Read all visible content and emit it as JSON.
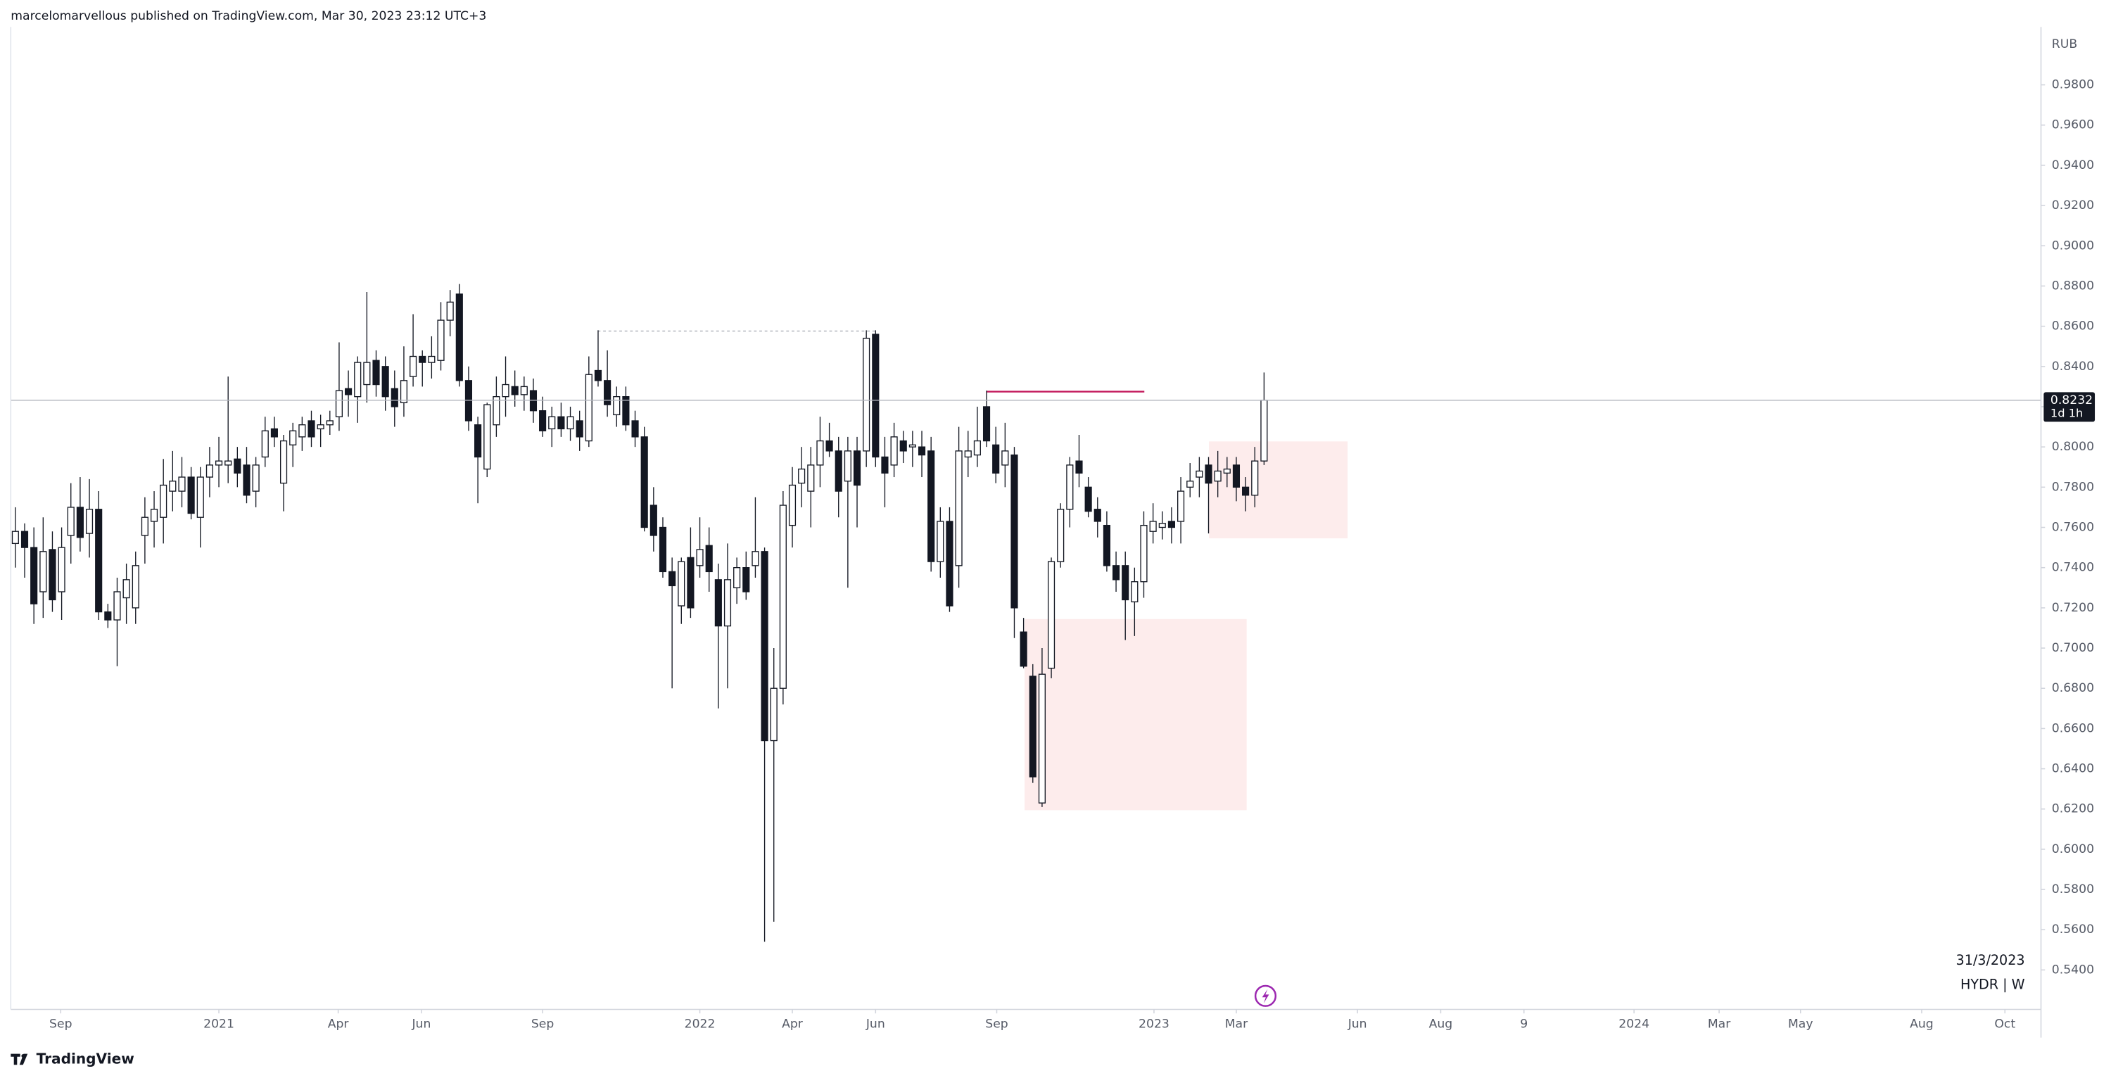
{
  "header": "marcelomarvellous published on TradingView.com, Mar 30, 2023 23:12 UTC+3",
  "footer": "TradingView",
  "chart_data": {
    "type": "candlestick",
    "currency": "RUB",
    "date_label": "31/3/2023",
    "symbol_label": "HYDR | W",
    "countdown": "1d 1h",
    "up_color": "#ffffff",
    "down_color": "#131722",
    "outline_color": "#131722",
    "xlim": [
      -0.5,
      219
    ],
    "ylim": [
      0.5204,
      1.0088
    ],
    "xticks": [
      {
        "value": 4.9,
        "label": "Sep"
      },
      {
        "value": 22,
        "label": "2021"
      },
      {
        "value": 34.9,
        "label": "Apr"
      },
      {
        "value": 43.9,
        "label": "Jun"
      },
      {
        "value": 57,
        "label": "Sep"
      },
      {
        "value": 74,
        "label": "2022"
      },
      {
        "value": 84,
        "label": "Apr"
      },
      {
        "value": 93,
        "label": "Jun"
      },
      {
        "value": 106.1,
        "label": "Sep"
      },
      {
        "value": 123.1,
        "label": "2023"
      },
      {
        "value": 132,
        "label": "Mar"
      },
      {
        "value": 145.1,
        "label": "Jun"
      },
      {
        "value": 154.1,
        "label": "Aug"
      },
      {
        "value": 163.1,
        "label": "9"
      },
      {
        "value": 175,
        "label": "2024"
      },
      {
        "value": 184.2,
        "label": "Mar"
      },
      {
        "value": 193,
        "label": "May"
      },
      {
        "value": 206.1,
        "label": "Aug"
      },
      {
        "value": 215.1,
        "label": "Oct"
      }
    ],
    "yticks": [
      {
        "value": 0.54,
        "label": "0.5400"
      },
      {
        "value": 0.56,
        "label": "0.5600"
      },
      {
        "value": 0.58,
        "label": "0.5800"
      },
      {
        "value": 0.6,
        "label": "0.6000"
      },
      {
        "value": 0.62,
        "label": "0.6200"
      },
      {
        "value": 0.64,
        "label": "0.6400"
      },
      {
        "value": 0.66,
        "label": "0.6600"
      },
      {
        "value": 0.68,
        "label": "0.6800"
      },
      {
        "value": 0.7,
        "label": "0.7000"
      },
      {
        "value": 0.72,
        "label": "0.7200"
      },
      {
        "value": 0.74,
        "label": "0.7400"
      },
      {
        "value": 0.76,
        "label": "0.7600"
      },
      {
        "value": 0.78,
        "label": "0.7800"
      },
      {
        "value": 0.8,
        "label": "0.8000"
      },
      {
        "value": 0.82,
        "label": "0.8200"
      },
      {
        "value": 0.84,
        "label": "0.8400"
      },
      {
        "value": 0.86,
        "label": "0.8600"
      },
      {
        "value": 0.88,
        "label": "0.8800"
      },
      {
        "value": 0.9,
        "label": "0.9000"
      },
      {
        "value": 0.92,
        "label": "0.9200"
      },
      {
        "value": 0.94,
        "label": "0.9400"
      },
      {
        "value": 0.96,
        "label": "0.9600"
      },
      {
        "value": 0.98,
        "label": "0.9800"
      }
    ],
    "open": [
      0.752,
      0.758,
      0.75,
      0.728,
      0.749,
      0.728,
      0.756,
      0.77,
      0.757,
      0.769,
      0.718,
      0.714,
      0.725,
      0.72,
      0.756,
      0.763,
      0.765,
      0.778,
      0.778,
      0.785,
      0.765,
      0.785,
      0.791,
      0.791,
      0.794,
      0.791,
      0.778,
      0.795,
      0.809,
      0.782,
      0.801,
      0.805,
      0.813,
      0.809,
      0.811,
      0.815,
      0.829,
      0.825,
      0.831,
      0.843,
      0.84,
      0.829,
      0.822,
      0.835,
      0.845,
      0.842,
      0.843,
      0.863,
      0.876,
      0.833,
      0.811,
      0.789,
      0.811,
      0.825,
      0.83,
      0.826,
      0.828,
      0.818,
      0.809,
      0.815,
      0.809,
      0.813,
      0.803,
      0.838,
      0.833,
      0.816,
      0.825,
      0.813,
      0.805,
      0.771,
      0.76,
      0.738,
      0.721,
      0.745,
      0.741,
      0.751,
      0.734,
      0.711,
      0.73,
      0.74,
      0.741,
      0.748,
      0.654,
      0.68,
      0.761,
      0.782,
      0.778,
      0.791,
      0.803,
      0.798,
      0.783,
      0.798,
      0.798,
      0.856,
      0.795,
      0.791,
      0.803,
      0.8,
      0.8,
      0.798,
      0.743,
      0.763,
      0.741,
      0.795,
      0.796,
      0.82,
      0.801,
      0.791,
      0.796,
      0.708,
      0.686,
      0.623,
      0.69,
      0.743,
      0.769,
      0.793,
      0.78,
      0.769,
      0.761,
      0.741,
      0.741,
      0.723,
      0.733,
      0.758,
      0.76,
      0.763,
      0.763,
      0.78,
      0.785,
      0.791,
      0.783,
      0.787,
      0.791,
      0.78,
      0.776,
      0.793
    ],
    "high": [
      0.77,
      0.762,
      0.76,
      0.765,
      0.758,
      0.76,
      0.782,
      0.785,
      0.784,
      0.778,
      0.722,
      0.735,
      0.742,
      0.748,
      0.775,
      0.778,
      0.794,
      0.798,
      0.795,
      0.79,
      0.79,
      0.8,
      0.805,
      0.835,
      0.8,
      0.8,
      0.795,
      0.815,
      0.815,
      0.806,
      0.812,
      0.815,
      0.818,
      0.816,
      0.818,
      0.852,
      0.838,
      0.845,
      0.877,
      0.848,
      0.845,
      0.838,
      0.85,
      0.866,
      0.848,
      0.855,
      0.872,
      0.878,
      0.881,
      0.84,
      0.815,
      0.822,
      0.835,
      0.845,
      0.838,
      0.835,
      0.834,
      0.825,
      0.82,
      0.822,
      0.82,
      0.818,
      0.845,
      0.858,
      0.848,
      0.83,
      0.83,
      0.818,
      0.81,
      0.78,
      0.765,
      0.745,
      0.745,
      0.76,
      0.765,
      0.76,
      0.742,
      0.752,
      0.745,
      0.748,
      0.775,
      0.75,
      0.7,
      0.778,
      0.79,
      0.8,
      0.8,
      0.815,
      0.812,
      0.805,
      0.805,
      0.805,
      0.858,
      0.858,
      0.805,
      0.812,
      0.808,
      0.808,
      0.808,
      0.805,
      0.77,
      0.77,
      0.81,
      0.808,
      0.82,
      0.828,
      0.81,
      0.812,
      0.8,
      0.715,
      0.692,
      0.7,
      0.745,
      0.772,
      0.795,
      0.806,
      0.785,
      0.775,
      0.768,
      0.748,
      0.748,
      0.74,
      0.768,
      0.772,
      0.768,
      0.77,
      0.785,
      0.792,
      0.795,
      0.795,
      0.798,
      0.795,
      0.795,
      0.785,
      0.8,
      0.837
    ],
    "low": [
      0.74,
      0.735,
      0.712,
      0.715,
      0.718,
      0.714,
      0.742,
      0.748,
      0.745,
      0.714,
      0.71,
      0.691,
      0.712,
      0.712,
      0.742,
      0.75,
      0.752,
      0.768,
      0.77,
      0.764,
      0.75,
      0.775,
      0.78,
      0.782,
      0.78,
      0.772,
      0.77,
      0.79,
      0.8,
      0.768,
      0.79,
      0.798,
      0.8,
      0.8,
      0.806,
      0.808,
      0.815,
      0.812,
      0.822,
      0.825,
      0.818,
      0.81,
      0.815,
      0.83,
      0.83,
      0.834,
      0.838,
      0.855,
      0.83,
      0.808,
      0.772,
      0.785,
      0.805,
      0.815,
      0.82,
      0.818,
      0.812,
      0.805,
      0.8,
      0.805,
      0.803,
      0.798,
      0.8,
      0.83,
      0.815,
      0.81,
      0.808,
      0.8,
      0.758,
      0.748,
      0.735,
      0.68,
      0.712,
      0.715,
      0.735,
      0.728,
      0.67,
      0.68,
      0.722,
      0.724,
      0.735,
      0.554,
      0.564,
      0.672,
      0.75,
      0.77,
      0.76,
      0.78,
      0.795,
      0.765,
      0.73,
      0.76,
      0.79,
      0.79,
      0.77,
      0.785,
      0.792,
      0.79,
      0.785,
      0.738,
      0.735,
      0.718,
      0.73,
      0.785,
      0.79,
      0.8,
      0.782,
      0.78,
      0.705,
      0.69,
      0.633,
      0.621,
      0.685,
      0.74,
      0.76,
      0.78,
      0.765,
      0.755,
      0.738,
      0.728,
      0.704,
      0.706,
      0.725,
      0.752,
      0.754,
      0.752,
      0.752,
      0.775,
      0.775,
      0.757,
      0.775,
      0.78,
      0.773,
      0.768,
      0.77,
      0.791
    ],
    "close": [
      0.758,
      0.75,
      0.722,
      0.748,
      0.724,
      0.75,
      0.77,
      0.755,
      0.769,
      0.718,
      0.714,
      0.728,
      0.734,
      0.741,
      0.765,
      0.769,
      0.781,
      0.783,
      0.785,
      0.767,
      0.785,
      0.791,
      0.793,
      0.793,
      0.787,
      0.776,
      0.791,
      0.808,
      0.805,
      0.803,
      0.808,
      0.811,
      0.805,
      0.811,
      0.813,
      0.828,
      0.826,
      0.842,
      0.842,
      0.831,
      0.825,
      0.82,
      0.833,
      0.845,
      0.842,
      0.845,
      0.863,
      0.872,
      0.833,
      0.813,
      0.795,
      0.821,
      0.825,
      0.831,
      0.826,
      0.83,
      0.818,
      0.808,
      0.815,
      0.809,
      0.815,
      0.805,
      0.836,
      0.833,
      0.821,
      0.825,
      0.811,
      0.805,
      0.76,
      0.756,
      0.738,
      0.731,
      0.743,
      0.72,
      0.749,
      0.738,
      0.711,
      0.734,
      0.74,
      0.728,
      0.748,
      0.654,
      0.68,
      0.771,
      0.781,
      0.789,
      0.791,
      0.803,
      0.798,
      0.778,
      0.798,
      0.781,
      0.854,
      0.795,
      0.787,
      0.805,
      0.798,
      0.801,
      0.796,
      0.743,
      0.763,
      0.721,
      0.798,
      0.798,
      0.803,
      0.803,
      0.787,
      0.798,
      0.72,
      0.691,
      0.636,
      0.687,
      0.743,
      0.769,
      0.791,
      0.787,
      0.768,
      0.763,
      0.741,
      0.734,
      0.724,
      0.733,
      0.761,
      0.763,
      0.762,
      0.76,
      0.778,
      0.783,
      0.788,
      0.782,
      0.788,
      0.789,
      0.78,
      0.776,
      0.793,
      0.8232
    ]
  }
}
